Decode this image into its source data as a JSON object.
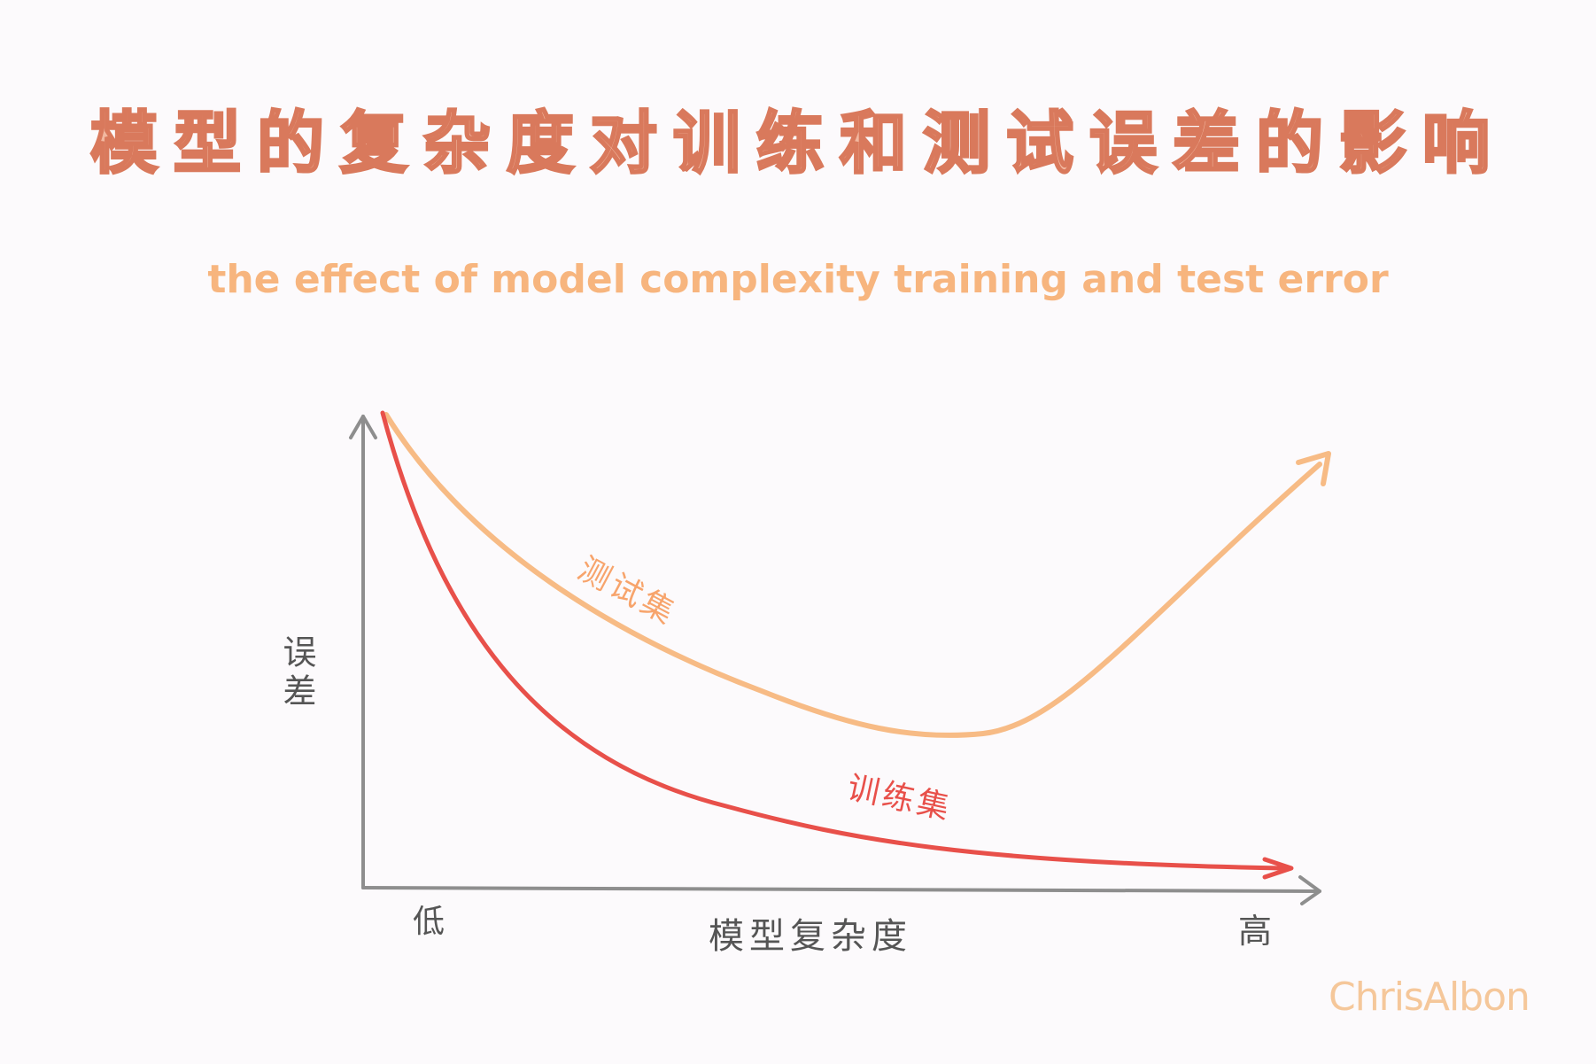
{
  "title_cn": "模型的复杂度对训练和测试误差的影响",
  "title_en": "the effect of model complexity training and test error",
  "axis": {
    "ylabel": "误差",
    "xlabel": "模型复杂度",
    "x_low": "低",
    "x_high": "高"
  },
  "curves": {
    "test_label": "测试集",
    "train_label": "训练集"
  },
  "colors": {
    "test_curve": "#f7bb85",
    "train_curve": "#e8504a",
    "axis": "#8e8e8e",
    "title_fill": "#f2b8a0",
    "title_stroke": "#d9795c"
  },
  "signature": "ChrisAlbon"
}
